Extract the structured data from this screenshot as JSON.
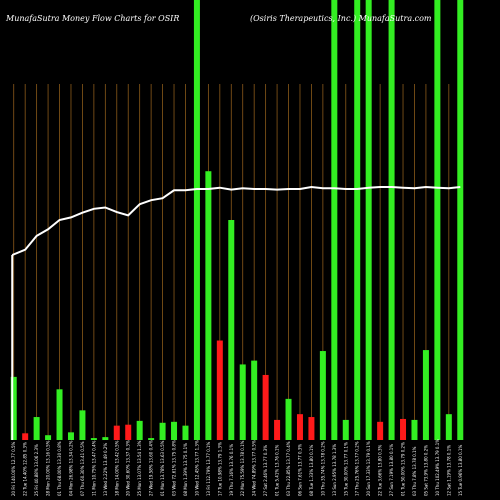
{
  "chart_data": {
    "type": "bar",
    "title_left": "MunafaSutra  Money Flow  Charts for OSIR",
    "title_right": "(Osiris Therapeutics,  Inc.) MunafaSutra.com",
    "bars": [
      {
        "label": "20 Fri 140.00% 12.77 0.5%",
        "color": "green",
        "value": 66
      },
      {
        "label": "22 Tue 14.40% 12.85 0.3%",
        "color": "red",
        "value": 7
      },
      {
        "label": "25 Fri 40.88% 13.06 2.3%",
        "color": "green",
        "value": 24
      },
      {
        "label": "28 Mon 20.00% 13.16 0.5%",
        "color": "green",
        "value": 5
      },
      {
        "label": "01 Thu 68.00% 13.30 0.8%",
        "color": "green",
        "value": 53
      },
      {
        "label": "04 Mon 26.98% 13.34 0.2%",
        "color": "green",
        "value": 8
      },
      {
        "label": "07 Thu 60.30% 13.41 0.5%",
        "color": "green",
        "value": 31
      },
      {
        "label": "11 Mon 10.75% 13.47 0.4%",
        "color": "green",
        "value": 2
      },
      {
        "label": "13 Wed 2.22% 13.49 0.2%",
        "color": "green",
        "value": 3
      },
      {
        "label": "18 Mon 14.00% 13.42 0.5%",
        "color": "red",
        "value": 15
      },
      {
        "label": "20 Wed 30.60% 13.37 0.3%",
        "color": "red",
        "value": 16
      },
      {
        "label": "25 Mon 13.07% 13.54 1.3%",
        "color": "green",
        "value": 20
      },
      {
        "label": "27 Wed 19.58% 13.60 0.4%",
        "color": "green",
        "value": 2
      },
      {
        "label": "01 Mon 13.78% 13.63 0.5%",
        "color": "green",
        "value": 18
      },
      {
        "label": "03 Wed 72.61% 13.75 0.8%",
        "color": "green",
        "value": 19
      },
      {
        "label": "08 Mon 1.39% 13.75 0.1%",
        "color": "green",
        "value": 15
      },
      {
        "label": "10 Wed 12.45% 13.77 1.3%",
        "color": "green",
        "value": 460
      },
      {
        "label": "13 Fri 112.79% 13.77 0.1%",
        "color": "green",
        "value": 281
      },
      {
        "label": "17 Tue 10.98% 13.79 1.3%",
        "color": "red",
        "value": 104
      },
      {
        "label": "19 Thu 7.16% 13.76 0.1%",
        "color": "green",
        "value": 230
      },
      {
        "label": "22 Mon 75.59% 13.78 0.1%",
        "color": "green",
        "value": 79
      },
      {
        "label": "24 Wed 74.89% 13.77 0.5%",
        "color": "green",
        "value": 83
      },
      {
        "label": "27 Sat 2.46% 13.77 0.3%",
        "color": "red",
        "value": 68
      },
      {
        "label": "01 Tue 5.41% 13.76 0.1%",
        "color": "red",
        "value": 21
      },
      {
        "label": "03 Thu 22.85% 13.77 0.4%",
        "color": "green",
        "value": 43
      },
      {
        "label": "06 Sun 7.61% 13.77 0.3%",
        "color": "red",
        "value": 27
      },
      {
        "label": "08 Tue 1.33% 13.80 0.1%",
        "color": "red",
        "value": 24
      },
      {
        "label": "10 Thu 35.74% 13.78 0.2%",
        "color": "green",
        "value": 93
      },
      {
        "label": "13 Sun 2.95% 13.78 1.3%",
        "color": "green",
        "value": 460
      },
      {
        "label": "15 Tue 30.00% 13.77 0.1%",
        "color": "green",
        "value": 21
      },
      {
        "label": "17 Thu 25.76% 13.77 0.2%",
        "color": "green",
        "value": 460
      },
      {
        "label": "20 Sun 17.33% 13.79 0.1%",
        "color": "green",
        "value": 460
      },
      {
        "label": "22 Tue 3.66% 13.80 0.3%",
        "color": "red",
        "value": 19
      },
      {
        "label": "27 Sun 7.19% 13.80 0.1%",
        "color": "green",
        "value": 460
      },
      {
        "label": "01 Tue 50.00% 13.79 0.2%",
        "color": "red",
        "value": 22
      },
      {
        "label": "03 Thu 7.8% 13.78 0.1%",
        "color": "green",
        "value": 21
      },
      {
        "label": "05 Sat 73.9% 13.80 0.2%",
        "color": "green",
        "value": 94
      },
      {
        "label": "10 Thu 102.49% 13.79 0.1%",
        "color": "green",
        "value": 460
      },
      {
        "label": "12 Sat 1.19% 13.78 0.1%",
        "color": "green",
        "value": 27
      },
      {
        "label": "15 Tue 0.96% 13.80 0.1%",
        "color": "green",
        "value": 460
      }
    ],
    "price_line": [
      12.77,
      12.85,
      13.06,
      13.16,
      13.3,
      13.34,
      13.41,
      13.47,
      13.49,
      13.42,
      13.37,
      13.54,
      13.6,
      13.63,
      13.75,
      13.75,
      13.77,
      13.77,
      13.79,
      13.76,
      13.78,
      13.77,
      13.77,
      13.76,
      13.77,
      13.77,
      13.8,
      13.78,
      13.78,
      13.77,
      13.77,
      13.79,
      13.8,
      13.8,
      13.79,
      13.78,
      13.8,
      13.79,
      13.78,
      13.8
    ],
    "colors": {
      "background": "#000000",
      "green": "#33ee22",
      "red": "#ff1a1a",
      "grid": "#8a5a1a",
      "line": "#ffffff",
      "text": "#ffffff"
    }
  }
}
